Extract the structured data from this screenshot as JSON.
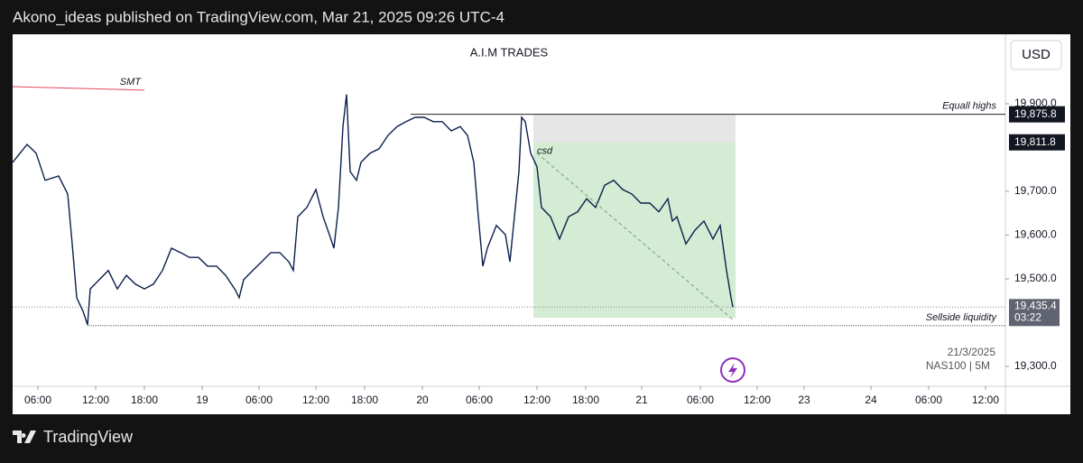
{
  "header": {
    "text": "Akono_ideas published on TradingView.com, Mar 21, 2025 09:26 UTC-4"
  },
  "footer": {
    "brand": "TradingView"
  },
  "chart_data": {
    "type": "line",
    "title": "A.I.M TRADES",
    "currency": "USD",
    "symbol": "NAS100 | 5M",
    "date": "21/3/2025",
    "color": "#0b1f4d",
    "x": [
      0,
      1.6,
      2.6,
      3.6,
      5.1,
      6.1,
      6.6,
      7.1,
      7.8,
      8.3,
      8.6,
      9.6,
      10.6,
      11.6,
      12.6,
      13.6,
      14.6,
      15.6,
      16.6,
      17.6,
      18.6,
      19.6,
      20.6,
      21.6,
      22.6,
      23.6,
      24.6,
      25.1,
      25.6,
      26.6,
      27.6,
      28.6,
      29.6,
      30.6,
      31.1,
      31.6,
      32.6,
      33.6,
      34.4,
      35.1,
      35.6,
      36.1,
      36.6,
      37.0,
      37.4,
      38.1,
      38.6,
      39.6,
      40.6,
      41.6,
      42.6,
      43.6,
      44.6,
      45.6,
      46.6,
      47.6,
      48.6,
      49.6,
      50.4,
      51.1,
      51.6,
      52.1,
      52.6,
      53.6,
      54.6,
      55.1,
      55.6,
      56.1,
      56.4,
      56.8,
      57.4,
      58.1,
      58.6,
      59.6,
      60.6,
      61.6,
      62.6,
      63.6,
      64.6,
      65.6,
      66.6,
      67.6,
      68.6,
      69.6,
      70.6,
      71.6,
      72.6,
      73.1,
      73.6,
      74.6,
      75.6,
      76.6,
      77.6,
      78.4,
      79.1,
      79.6,
      79.8
    ],
    "values": [
      19766,
      19807,
      19787,
      19725,
      19735,
      19694,
      19580,
      19457,
      19426,
      19395,
      19477,
      19498,
      19519,
      19477,
      19508,
      19488,
      19477,
      19488,
      19519,
      19570,
      19560,
      19549,
      19549,
      19529,
      19529,
      19508,
      19477,
      19457,
      19498,
      19519,
      19539,
      19560,
      19560,
      19539,
      19519,
      19642,
      19663,
      19704,
      19642,
      19601,
      19570,
      19663,
      19848,
      19921,
      19745,
      19725,
      19766,
      19787,
      19797,
      19828,
      19848,
      19859,
      19869,
      19869,
      19859,
      19859,
      19838,
      19848,
      19828,
      19766,
      19642,
      19529,
      19570,
      19622,
      19601,
      19539,
      19642,
      19745,
      19869,
      19859,
      19787,
      19756,
      19663,
      19642,
      19591,
      19642,
      19653,
      19683,
      19663,
      19714,
      19725,
      19704,
      19694,
      19673,
      19673,
      19653,
      19683,
      19632,
      19642,
      19580,
      19611,
      19632,
      19591,
      19622,
      19519,
      19457,
      19435.4
    ],
    "xlim": [
      0,
      110
    ],
    "ylim": [
      19254.6,
      20058.6
    ],
    "xticks": [
      {
        "value": 2.8,
        "label": "06:00"
      },
      {
        "value": 9.2,
        "label": "12:00"
      },
      {
        "value": 14.6,
        "label": "18:00"
      },
      {
        "value": 21,
        "label": "19"
      },
      {
        "value": 27.3,
        "label": "06:00"
      },
      {
        "value": 33.6,
        "label": "12:00"
      },
      {
        "value": 39,
        "label": "18:00"
      },
      {
        "value": 45.4,
        "label": "20"
      },
      {
        "value": 51.7,
        "label": "06:00"
      },
      {
        "value": 58.1,
        "label": "12:00"
      },
      {
        "value": 63.5,
        "label": "18:00"
      },
      {
        "value": 69.7,
        "label": "21"
      },
      {
        "value": 76.2,
        "label": "06:00"
      },
      {
        "value": 82.5,
        "label": "12:00"
      },
      {
        "value": 87.7,
        "label": "23"
      },
      {
        "value": 95.1,
        "label": "24"
      },
      {
        "value": 101.5,
        "label": "06:00"
      },
      {
        "value": 107.8,
        "label": "12:00"
      }
    ],
    "yticks": [
      {
        "value": 19300,
        "label": "19,300.0"
      },
      {
        "value": 19500,
        "label": "19,500.0"
      },
      {
        "value": 19600,
        "label": "19,600.0"
      },
      {
        "value": 19700,
        "label": "19,700.0"
      },
      {
        "value": 19900,
        "label": "19,900.0"
      }
    ],
    "levels": [
      {
        "label": "Equall highs",
        "value": 19875.8,
        "x": 44.1,
        "tag": "19,875.8"
      },
      {
        "label": "Sellside liquidity",
        "value": 19393,
        "x": 8.3
      }
    ],
    "price_tags": [
      {
        "value": 19811.8,
        "label": "19,811.8"
      }
    ],
    "last_price": {
      "value": 19435.4,
      "label": "19,435.4",
      "countdown": "03:22"
    },
    "smt": {
      "label": "SMT",
      "x": [
        0,
        14.6
      ],
      "values": [
        19939,
        19931
      ],
      "color": "#e0475b"
    },
    "zones": [
      {
        "x": [
          57.7,
          80.1
        ],
        "y": [
          19811.8,
          19875.8
        ],
        "color": "#e6e6e6"
      },
      {
        "x": [
          57.7,
          80.1
        ],
        "y": [
          19411,
          19811.8
        ],
        "color": "#d3ecd3"
      }
    ],
    "trend": {
      "label": "csd",
      "x": [
        58.1,
        79.8
      ],
      "values": [
        19787,
        19407
      ]
    }
  }
}
